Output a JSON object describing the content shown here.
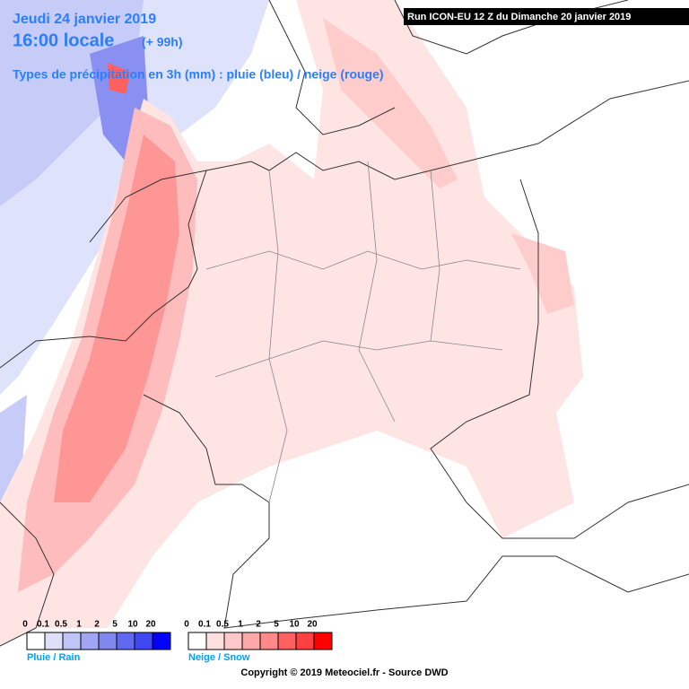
{
  "header": {
    "date": "Jeudi 24 janvier 2019",
    "time": "16:00 locale",
    "lead": "(+ 99h)",
    "subtitle": "Types de précipitation en 3h (mm) : pluie (bleu) / neige (rouge)"
  },
  "run": "Run ICON-EU 12 Z du Dimanche 20 janvier 2019",
  "legend": {
    "rain": {
      "label": "Pluie / Rain",
      "ticks": [
        0,
        0.1,
        0.5,
        1,
        2,
        5,
        10,
        20
      ]
    },
    "snow": {
      "label": "Neige / Snow",
      "ticks": [
        0,
        0.1,
        0.5,
        1,
        2,
        5,
        10,
        20
      ]
    }
  },
  "copyright": "Copyright © 2019 Meteociel.fr - Source DWD"
}
